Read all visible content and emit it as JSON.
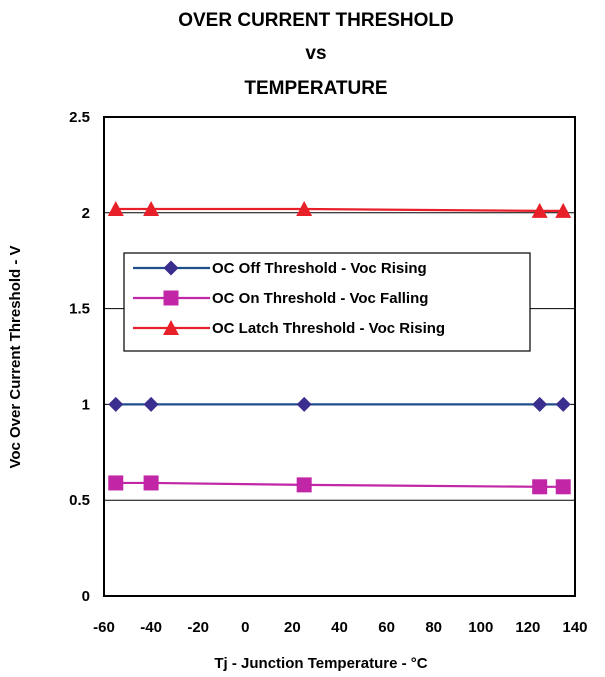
{
  "chart_data": {
    "type": "line",
    "title_lines": [
      "OVER CURRENT THRESHOLD",
      "vs",
      "TEMPERATURE"
    ],
    "xlabel": "Tj - Junction Temperature -  °C",
    "ylabel": "Voc Over Current Threshold - V",
    "xlim": [
      -60,
      140
    ],
    "ylim": [
      0,
      2.5
    ],
    "x_ticks": [
      -60,
      -40,
      -20,
      0,
      20,
      40,
      60,
      80,
      100,
      120,
      140
    ],
    "y_ticks": [
      0,
      0.5,
      1,
      1.5,
      2,
      2.5
    ],
    "y_tick_labels": [
      "0",
      "0.5",
      "1",
      "1.5",
      "2",
      "2.5"
    ],
    "grid": "horizontal",
    "legend_position": "center-left",
    "series": [
      {
        "name": "OC Off Threshold - Voc Rising",
        "color": "#1F4E8C",
        "marker": "diamond",
        "marker_color": "#3A2F8F",
        "x": [
          -55,
          -40,
          25,
          125,
          135
        ],
        "y": [
          1.0,
          1.0,
          1.0,
          1.0,
          1.0
        ]
      },
      {
        "name": "OC On Threshold - Voc Falling",
        "color": "#C026A6",
        "marker": "square",
        "marker_color": "#C026A6",
        "x": [
          -55,
          -40,
          25,
          125,
          135
        ],
        "y": [
          0.59,
          0.59,
          0.58,
          0.57,
          0.57
        ]
      },
      {
        "name": "OC Latch Threshold - Voc Rising",
        "color": "#E8202A",
        "marker": "triangle",
        "marker_color": "#E8202A",
        "x": [
          -55,
          -40,
          25,
          125,
          135
        ],
        "y": [
          2.02,
          2.02,
          2.02,
          2.01,
          2.01
        ]
      }
    ]
  }
}
